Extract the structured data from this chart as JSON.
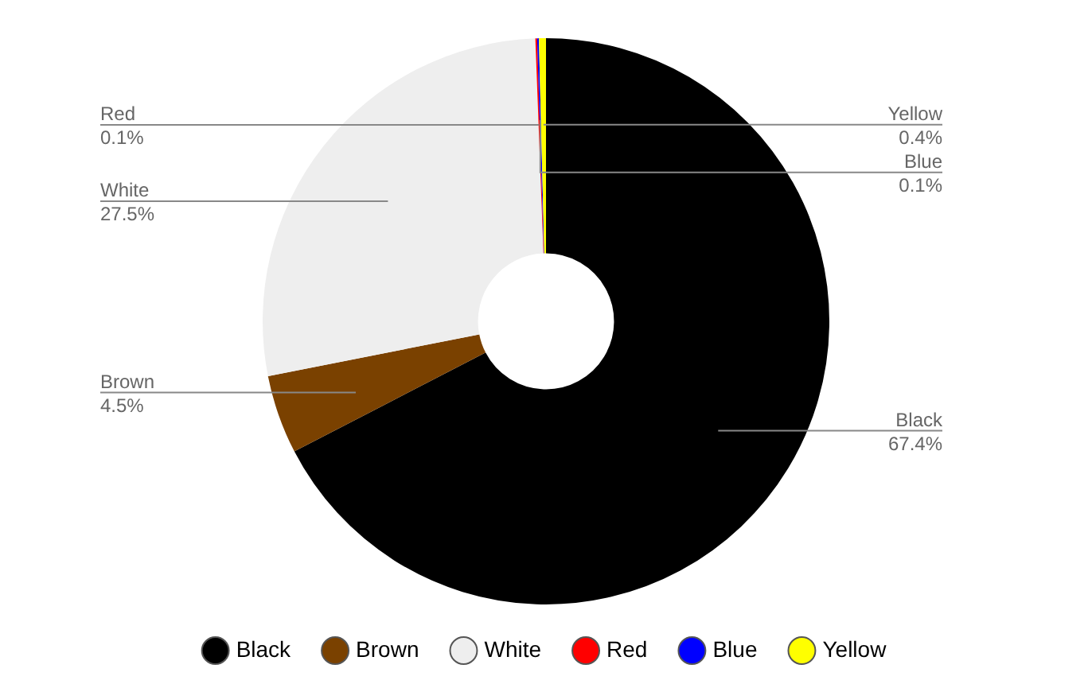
{
  "chart_data": {
    "type": "donut",
    "categories": [
      "Black",
      "Brown",
      "White",
      "Red",
      "Blue",
      "Yellow"
    ],
    "values": [
      67.4,
      4.5,
      27.5,
      0.1,
      0.1,
      0.4
    ],
    "colors": [
      "#000000",
      "#7a4100",
      "#eeeeee",
      "#ff0000",
      "#0000ff",
      "#ffff00"
    ],
    "value_labels": [
      "67.4%",
      "4.5%",
      "27.5%",
      "0.1%",
      "0.1%",
      "0.4%"
    ],
    "legend": "bottom"
  }
}
